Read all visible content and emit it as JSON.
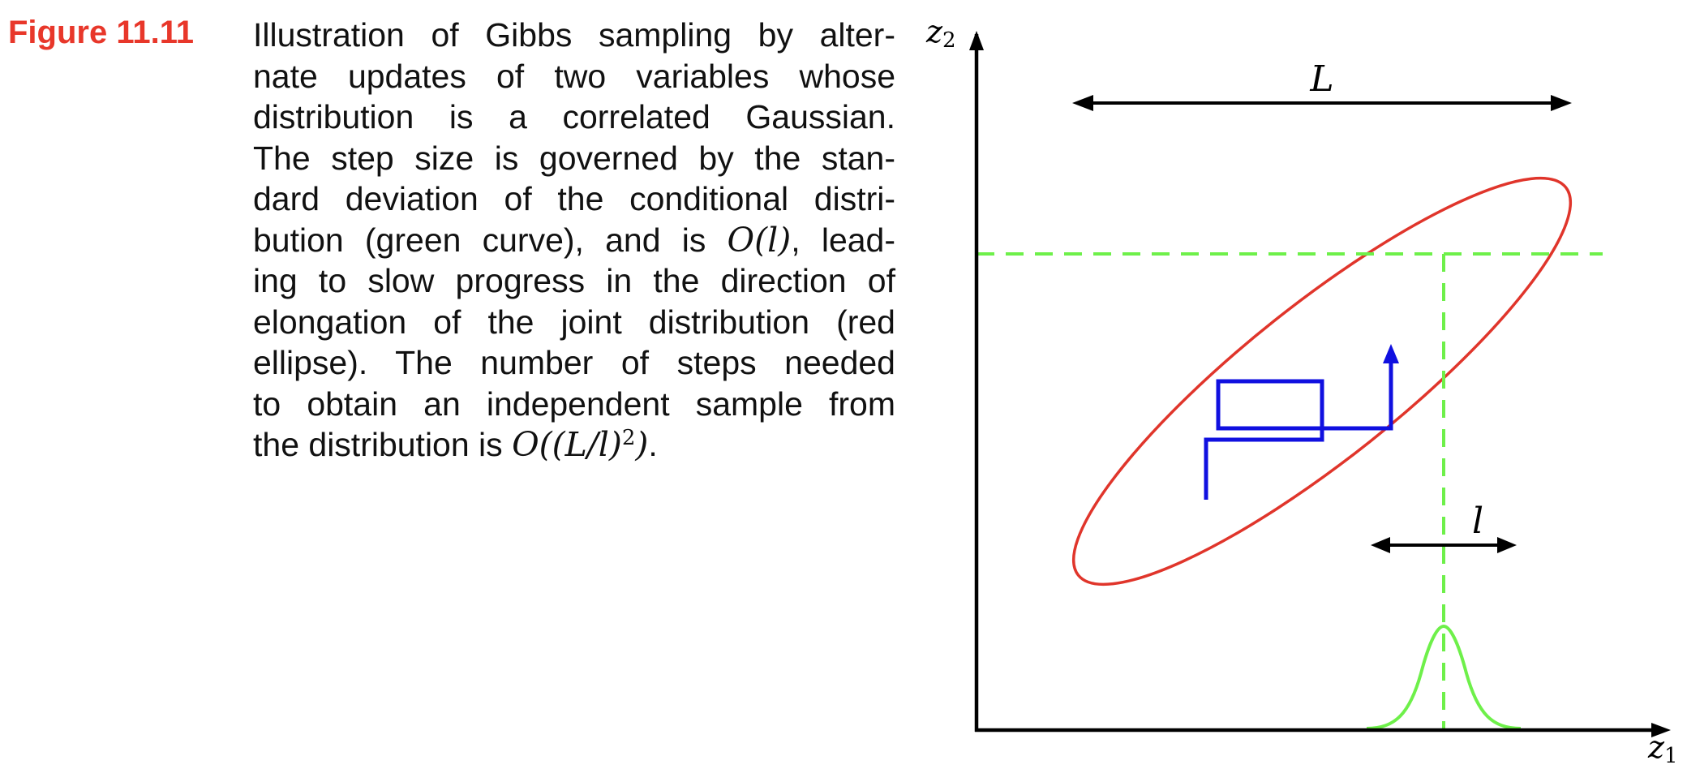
{
  "figure": {
    "label": "Figure 11.11",
    "label_color": "#e8372a",
    "caption_lines": [
      "Illustration of Gibbs sampling by alter-",
      "nate updates of two variables whose",
      "distribution is a correlated Gaussian.",
      "The step size is governed by the stan-",
      "dard deviation of the conditional distri-",
      "bution (green curve), and is {O(l)}, lead-",
      "ing to slow progress in the direction of",
      "elongation of the joint distribution (red",
      "ellipse).  The number of steps needed",
      "to obtain an independent sample from",
      "the distribution is {O((L/l)^2)}."
    ],
    "caption_parts": {
      "line6_pre": "bution (green curve), and is ",
      "line6_math": "O(l)",
      "line6_post": ", lead-",
      "line11_pre": "the distribution is ",
      "line11_math": "O((L/l)",
      "line11_sup": "2",
      "line11_math_close": ")",
      "line11_post": "."
    }
  },
  "diagram": {
    "axes": {
      "x_label": "z",
      "x_sub": "1",
      "y_label": "z",
      "y_sub": "2"
    },
    "annotations": {
      "L_label": "L",
      "l_label": "l"
    },
    "colors": {
      "ellipse": "#e0352b",
      "gibbs_path": "#1010e0",
      "conditional": "#6ef04a",
      "axes": "#000000"
    }
  }
}
